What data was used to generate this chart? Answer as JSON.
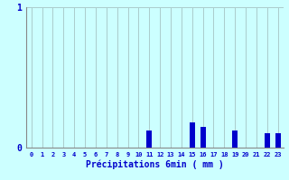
{
  "xlabel": "Précipitations 6min ( mm )",
  "categories": [
    0,
    1,
    2,
    3,
    4,
    5,
    6,
    7,
    8,
    9,
    10,
    11,
    12,
    13,
    14,
    15,
    16,
    17,
    18,
    19,
    20,
    21,
    22,
    23
  ],
  "values": [
    0,
    0,
    0,
    0,
    0,
    0,
    0,
    0,
    0,
    0,
    0,
    0.12,
    0,
    0,
    0,
    0.18,
    0.15,
    0,
    0,
    0.12,
    0,
    0,
    0.1,
    0.1
  ],
  "bar_color": "#0000cc",
  "background_color": "#ccffff",
  "grid_color": "#aacccc",
  "axis_color": "#888888",
  "text_color": "#0000cc",
  "ylim": [
    0,
    1.0
  ],
  "yticks": [
    0,
    1
  ],
  "ytick_labels": [
    "0",
    "1"
  ],
  "xlim": [
    -0.5,
    23.5
  ],
  "bar_width": 0.5
}
